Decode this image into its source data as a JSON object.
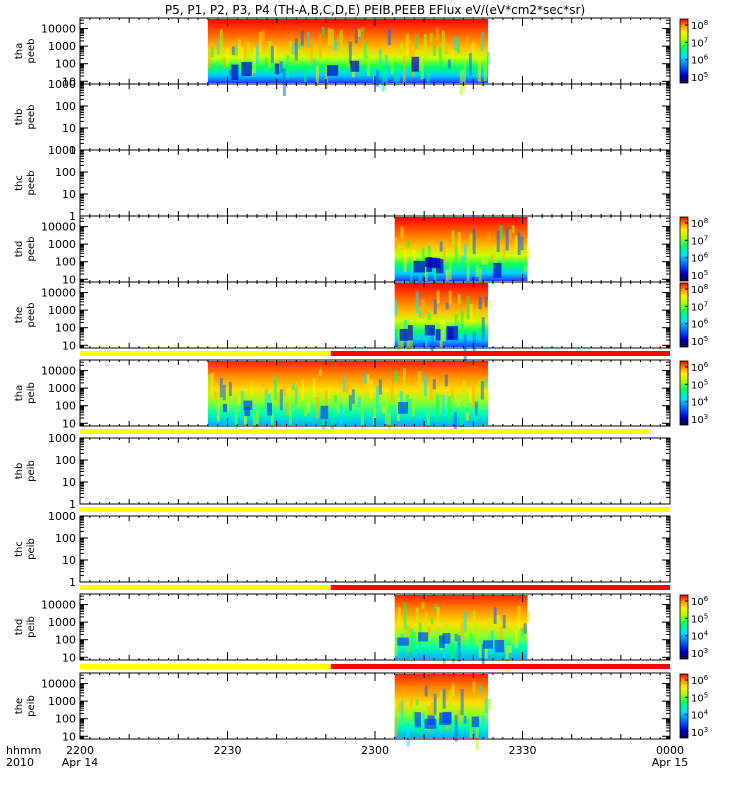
{
  "title": "P5, P1, P2, P3, P4 (TH-A,B,C,D,E) PEIB,PEEB EFlux eV/(eV*cm2*sec*sr)",
  "x_axis": {
    "hhmm_label": "hhmm",
    "year_label": "2010",
    "ticks": [
      {
        "label": "2200",
        "sub": "Apr 14"
      },
      {
        "label": "2230",
        "sub": ""
      },
      {
        "label": "2300",
        "sub": ""
      },
      {
        "label": "2330",
        "sub": ""
      },
      {
        "label": "0000",
        "sub": "Apr 15"
      }
    ]
  },
  "chart_data": {
    "type": "heatmap",
    "time_range": [
      "2200",
      "0000"
    ],
    "panels": [
      {
        "probe": "tha",
        "product": "peeb",
        "coverage": [
          "2226",
          "2323"
        ],
        "ylim": [
          7,
          40000
        ],
        "yticks": [
          "10",
          "100",
          "1000",
          "10000"
        ],
        "colorbar": [
          "10^5",
          "10^6",
          "10^7",
          "10^8"
        ],
        "mode_bar": null
      },
      {
        "probe": "thb",
        "product": "peeb",
        "coverage": null,
        "ylim": [
          1,
          1000
        ],
        "yticks": [
          "1",
          "10",
          "100",
          "1000"
        ],
        "colorbar": null,
        "mode_bar": null
      },
      {
        "probe": "thc",
        "product": "peeb",
        "coverage": null,
        "ylim": [
          1,
          1000
        ],
        "yticks": [
          "1",
          "10",
          "100",
          "1000"
        ],
        "colorbar": null,
        "mode_bar": null
      },
      {
        "probe": "thd",
        "product": "peeb",
        "coverage": [
          "2304",
          "2331"
        ],
        "ylim": [
          7,
          40000
        ],
        "yticks": [
          "10",
          "100",
          "1000",
          "10000"
        ],
        "colorbar": [
          "10^5",
          "10^6",
          "10^7",
          "10^8"
        ],
        "mode_bar": null
      },
      {
        "probe": "the",
        "product": "peeb",
        "coverage": [
          "2304",
          "2323"
        ],
        "ylim": [
          7,
          40000
        ],
        "yticks": [
          "10",
          "100",
          "1000",
          "10000"
        ],
        "colorbar": [
          "10^5",
          "10^6",
          "10^7",
          "10^8"
        ],
        "mode_bar": null
      },
      {
        "probe": "tha",
        "product": "peib",
        "coverage": [
          "2226",
          "2323"
        ],
        "ylim": [
          7,
          40000
        ],
        "yticks": [
          "10",
          "100",
          "1000",
          "10000"
        ],
        "colorbar": [
          "10^3",
          "10^4",
          "10^5",
          "10^6"
        ],
        "mode_bar": {
          "yellow": [
            "2200",
            "2251"
          ],
          "red": [
            "2251",
            "2400"
          ]
        }
      },
      {
        "probe": "thb",
        "product": "peib",
        "coverage": null,
        "ylim": [
          1,
          1000
        ],
        "yticks": [
          "1",
          "10",
          "100",
          "1000"
        ],
        "colorbar": null,
        "mode_bar": {
          "yellow": [
            "2200",
            "2356"
          ],
          "red": null
        }
      },
      {
        "probe": "thc",
        "product": "peib",
        "coverage": null,
        "ylim": [
          1,
          1000
        ],
        "yticks": [
          "1",
          "10",
          "100",
          "1000"
        ],
        "colorbar": null,
        "mode_bar": {
          "yellow": [
            "2200",
            "2400"
          ],
          "red": null
        }
      },
      {
        "probe": "thd",
        "product": "peib",
        "coverage": [
          "2304",
          "2331"
        ],
        "ylim": [
          7,
          40000
        ],
        "yticks": [
          "10",
          "100",
          "1000",
          "10000"
        ],
        "colorbar": [
          "10^3",
          "10^4",
          "10^5",
          "10^6"
        ],
        "mode_bar": {
          "yellow": [
            "2200",
            "2251"
          ],
          "red": [
            "2251",
            "2400"
          ]
        }
      },
      {
        "probe": "the",
        "product": "peib",
        "coverage": [
          "2304",
          "2323"
        ],
        "ylim": [
          7,
          40000
        ],
        "yticks": [
          "10",
          "100",
          "1000",
          "10000"
        ],
        "colorbar": [
          "10^3",
          "10^4",
          "10^5",
          "10^6"
        ],
        "mode_bar": {
          "yellow": [
            "2200",
            "2251"
          ],
          "red": [
            "2251",
            "2400"
          ]
        }
      }
    ]
  },
  "colors": {
    "yellow_bar": "#ffff00",
    "red_bar": "#ff0000",
    "spectrogram": [
      "#ff0000",
      "#ff6a00",
      "#ffb000",
      "#ffee00",
      "#aaff00",
      "#00ff66",
      "#00e5ff",
      "#0066ff",
      "#0000cc",
      "#1a0040"
    ]
  }
}
